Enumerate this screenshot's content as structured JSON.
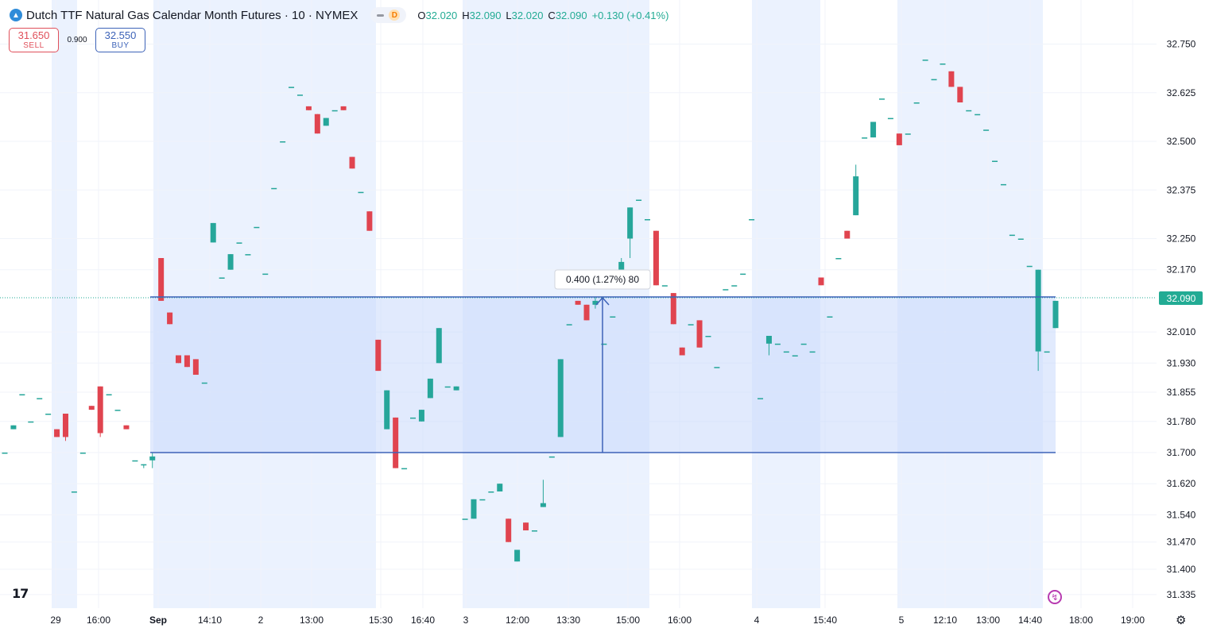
{
  "header": {
    "title": "Dutch TTF Natural Gas Calendar Month Futures · 10 · NYMEX",
    "interval_badge": "D",
    "ohlc": {
      "o_label": "O",
      "o": "32.020",
      "h_label": "H",
      "h": "32.090",
      "l_label": "L",
      "l": "32.020",
      "c_label": "C",
      "c": "32.090",
      "change": "+0.130 (+0.41%)"
    }
  },
  "trade": {
    "sell_price": "31.650",
    "sell_label": "SELL",
    "spread": "0.900",
    "buy_price": "32.550",
    "buy_label": "BUY"
  },
  "last_price_label": "32.090",
  "measure_label": "0.400 (1.27%) 80",
  "colors": {
    "up": "#26a69a",
    "down": "#e0444f",
    "session_shade": "#e8f0fe",
    "measure_fill": "#c9d9fb",
    "measure_line": "#3d63b8",
    "price_tag": "#22ab94"
  },
  "chart_data": {
    "type": "candlestick",
    "symbol": "Dutch TTF Natural Gas Calendar Month Futures",
    "interval": "10",
    "exchange": "NYMEX",
    "y_ticks": [
      "32.750",
      "32.625",
      "32.500",
      "32.375",
      "32.250",
      "32.170",
      "32.010",
      "31.930",
      "31.855",
      "31.780",
      "31.700",
      "31.620",
      "31.540",
      "31.470",
      "31.400",
      "31.335"
    ],
    "x_ticks": [
      "29",
      "16:00",
      "Sep",
      "14:10",
      "2",
      "13:00",
      "15:30",
      "16:40",
      "3",
      "12:00",
      "13:30",
      "15:00",
      "16:00",
      "4",
      "15:40",
      "5",
      "12:10",
      "13:00",
      "14:40",
      "18:00",
      "19:00"
    ],
    "last_price": 32.09,
    "measure": {
      "from": 31.69,
      "to": 32.09,
      "change": 0.4,
      "percent": 1.27,
      "bars": 80
    },
    "candles": [
      [
        31.7,
        31.7,
        31.7,
        31.7
      ],
      [
        31.76,
        31.77,
        31.76,
        31.77
      ],
      [
        31.85,
        31.85,
        31.85,
        31.85
      ],
      [
        31.78,
        31.78,
        31.78,
        31.78
      ],
      [
        31.84,
        31.84,
        31.84,
        31.84
      ],
      [
        31.8,
        31.8,
        31.8,
        31.8
      ],
      [
        31.76,
        31.76,
        31.74,
        31.74
      ],
      [
        31.8,
        31.8,
        31.73,
        31.74
      ],
      [
        31.6,
        31.6,
        31.6,
        31.6
      ],
      [
        31.7,
        31.7,
        31.7,
        31.7
      ],
      [
        31.82,
        31.82,
        31.81,
        31.81
      ],
      [
        31.87,
        31.87,
        31.74,
        31.75
      ],
      [
        31.85,
        31.85,
        31.85,
        31.85
      ],
      [
        31.81,
        31.81,
        31.81,
        31.81
      ],
      [
        31.77,
        31.77,
        31.76,
        31.76
      ],
      [
        31.68,
        31.68,
        31.68,
        31.68
      ],
      [
        31.67,
        31.67,
        31.66,
        31.67
      ],
      [
        31.68,
        31.7,
        31.66,
        31.69
      ],
      [
        32.2,
        32.2,
        32.09,
        32.09
      ],
      [
        32.06,
        32.06,
        32.03,
        32.03
      ],
      [
        31.95,
        31.95,
        31.93,
        31.93
      ],
      [
        31.95,
        31.95,
        31.92,
        31.92
      ],
      [
        31.94,
        31.94,
        31.9,
        31.9
      ],
      [
        31.88,
        31.88,
        31.88,
        31.88
      ],
      [
        32.24,
        32.29,
        32.24,
        32.29
      ],
      [
        32.15,
        32.15,
        32.15,
        32.15
      ],
      [
        32.17,
        32.21,
        32.17,
        32.21
      ],
      [
        32.24,
        32.24,
        32.24,
        32.24
      ],
      [
        32.21,
        32.21,
        32.21,
        32.21
      ],
      [
        32.28,
        32.28,
        32.28,
        32.28
      ],
      [
        32.16,
        32.16,
        32.16,
        32.16
      ],
      [
        32.38,
        32.38,
        32.38,
        32.38
      ],
      [
        32.5,
        32.5,
        32.5,
        32.5
      ],
      [
        32.64,
        32.64,
        32.64,
        32.64
      ],
      [
        32.62,
        32.62,
        32.62,
        32.62
      ],
      [
        32.59,
        32.59,
        32.58,
        32.58
      ],
      [
        32.57,
        32.57,
        32.52,
        32.52
      ],
      [
        32.54,
        32.56,
        32.54,
        32.56
      ],
      [
        32.58,
        32.58,
        32.58,
        32.58
      ],
      [
        32.59,
        32.59,
        32.58,
        32.58
      ],
      [
        32.46,
        32.46,
        32.43,
        32.43
      ],
      [
        32.37,
        32.37,
        32.37,
        32.37
      ],
      [
        32.32,
        32.32,
        32.27,
        32.27
      ],
      [
        31.99,
        31.99,
        31.91,
        31.91
      ],
      [
        31.76,
        31.86,
        31.76,
        31.86
      ],
      [
        31.79,
        31.79,
        31.66,
        31.66
      ],
      [
        31.66,
        31.66,
        31.66,
        31.66
      ],
      [
        31.79,
        31.79,
        31.79,
        31.79
      ],
      [
        31.78,
        31.81,
        31.78,
        31.81
      ],
      [
        31.84,
        31.89,
        31.84,
        31.89
      ],
      [
        31.93,
        32.02,
        31.93,
        32.02
      ],
      [
        31.87,
        31.87,
        31.87,
        31.87
      ],
      [
        31.86,
        31.87,
        31.86,
        31.87
      ],
      [
        31.53,
        31.53,
        31.53,
        31.53
      ],
      [
        31.53,
        31.58,
        31.53,
        31.58
      ],
      [
        31.58,
        31.58,
        31.58,
        31.58
      ],
      [
        31.6,
        31.6,
        31.6,
        31.6
      ],
      [
        31.6,
        31.62,
        31.6,
        31.62
      ],
      [
        31.53,
        31.53,
        31.47,
        31.47
      ],
      [
        31.42,
        31.45,
        31.42,
        31.45
      ],
      [
        31.52,
        31.52,
        31.5,
        31.5
      ],
      [
        31.5,
        31.5,
        31.5,
        31.5
      ],
      [
        31.56,
        31.63,
        31.56,
        31.57
      ],
      [
        31.69,
        31.69,
        31.69,
        31.69
      ],
      [
        31.74,
        31.94,
        31.74,
        31.94
      ],
      [
        32.03,
        32.03,
        32.03,
        32.03
      ],
      [
        32.09,
        32.09,
        32.08,
        32.08
      ],
      [
        32.08,
        32.08,
        32.04,
        32.04
      ],
      [
        32.08,
        32.1,
        32.07,
        32.09
      ],
      [
        31.98,
        31.98,
        31.98,
        31.98
      ],
      [
        32.05,
        32.05,
        32.05,
        32.05
      ],
      [
        32.15,
        32.2,
        32.15,
        32.19
      ],
      [
        32.25,
        32.33,
        32.2,
        32.33
      ],
      [
        32.35,
        32.35,
        32.35,
        32.35
      ],
      [
        32.3,
        32.3,
        32.3,
        32.3
      ],
      [
        32.27,
        32.27,
        32.13,
        32.13
      ],
      [
        32.13,
        32.13,
        32.13,
        32.13
      ],
      [
        32.11,
        32.11,
        32.03,
        32.03
      ],
      [
        31.97,
        31.97,
        31.95,
        31.95
      ],
      [
        32.03,
        32.03,
        32.03,
        32.03
      ],
      [
        32.04,
        32.04,
        31.97,
        31.97
      ],
      [
        32.0,
        32.0,
        32.0,
        32.0
      ],
      [
        31.92,
        31.92,
        31.92,
        31.92
      ],
      [
        32.12,
        32.12,
        32.12,
        32.12
      ],
      [
        32.13,
        32.13,
        32.13,
        32.13
      ],
      [
        32.16,
        32.16,
        32.16,
        32.16
      ],
      [
        32.3,
        32.3,
        32.3,
        32.3
      ],
      [
        31.84,
        31.84,
        31.84,
        31.84
      ],
      [
        31.98,
        32.0,
        31.95,
        32.0
      ],
      [
        31.98,
        31.98,
        31.98,
        31.98
      ],
      [
        31.96,
        31.96,
        31.96,
        31.96
      ],
      [
        31.95,
        31.95,
        31.95,
        31.95
      ],
      [
        31.98,
        31.98,
        31.98,
        31.98
      ],
      [
        31.96,
        31.96,
        31.96,
        31.96
      ],
      [
        32.15,
        32.15,
        32.13,
        32.13
      ],
      [
        32.05,
        32.05,
        32.05,
        32.05
      ],
      [
        32.2,
        32.2,
        32.2,
        32.2
      ],
      [
        32.27,
        32.27,
        32.25,
        32.25
      ],
      [
        32.31,
        32.44,
        32.31,
        32.41
      ],
      [
        32.51,
        32.51,
        32.51,
        32.51
      ],
      [
        32.51,
        32.55,
        32.51,
        32.55
      ],
      [
        32.61,
        32.61,
        32.61,
        32.61
      ],
      [
        32.56,
        32.56,
        32.56,
        32.56
      ],
      [
        32.52,
        32.52,
        32.49,
        32.49
      ],
      [
        32.52,
        32.52,
        32.52,
        32.52
      ],
      [
        32.6,
        32.6,
        32.6,
        32.6
      ],
      [
        32.71,
        32.71,
        32.71,
        32.71
      ],
      [
        32.66,
        32.66,
        32.66,
        32.66
      ],
      [
        32.7,
        32.7,
        32.7,
        32.7
      ],
      [
        32.68,
        32.68,
        32.64,
        32.64
      ],
      [
        32.64,
        32.64,
        32.6,
        32.6
      ],
      [
        32.58,
        32.58,
        32.58,
        32.58
      ],
      [
        32.57,
        32.57,
        32.57,
        32.57
      ],
      [
        32.53,
        32.53,
        32.53,
        32.53
      ],
      [
        32.45,
        32.45,
        32.45,
        32.45
      ],
      [
        32.39,
        32.39,
        32.39,
        32.39
      ],
      [
        32.26,
        32.26,
        32.26,
        32.26
      ],
      [
        32.25,
        32.25,
        32.25,
        32.25
      ],
      [
        32.18,
        32.18,
        32.18,
        32.18
      ],
      [
        31.96,
        32.17,
        31.91,
        32.17
      ],
      [
        31.96,
        31.96,
        31.96,
        31.96
      ],
      [
        32.02,
        32.09,
        32.02,
        32.09
      ]
    ]
  }
}
